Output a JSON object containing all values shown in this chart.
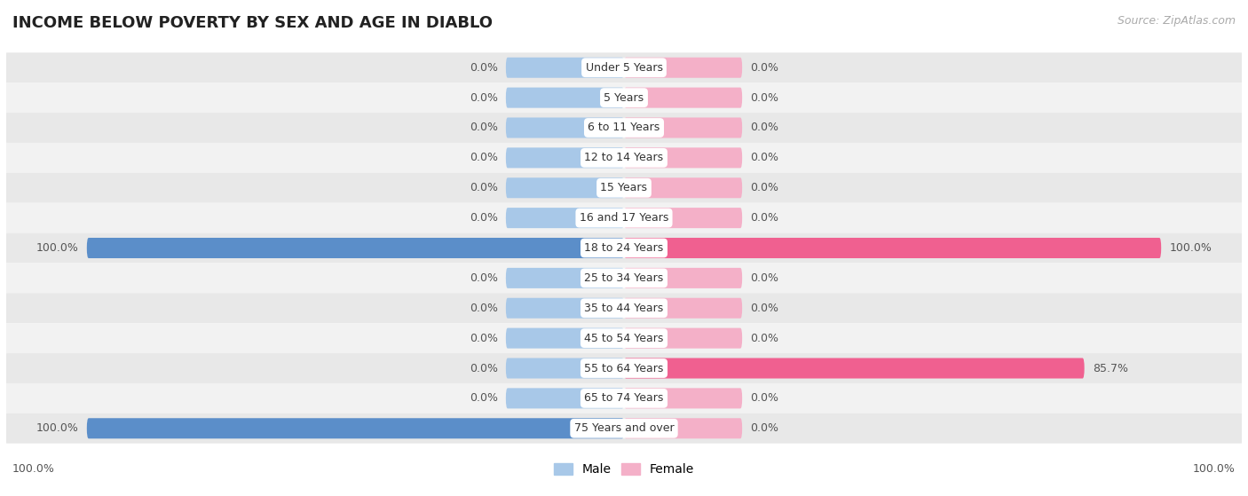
{
  "title": "INCOME BELOW POVERTY BY SEX AND AGE IN DIABLO",
  "source": "Source: ZipAtlas.com",
  "categories": [
    "Under 5 Years",
    "5 Years",
    "6 to 11 Years",
    "12 to 14 Years",
    "15 Years",
    "16 and 17 Years",
    "18 to 24 Years",
    "25 to 34 Years",
    "35 to 44 Years",
    "45 to 54 Years",
    "55 to 64 Years",
    "65 to 74 Years",
    "75 Years and over"
  ],
  "male": [
    0.0,
    0.0,
    0.0,
    0.0,
    0.0,
    0.0,
    100.0,
    0.0,
    0.0,
    0.0,
    0.0,
    0.0,
    100.0
  ],
  "female": [
    0.0,
    0.0,
    0.0,
    0.0,
    0.0,
    0.0,
    100.0,
    0.0,
    0.0,
    0.0,
    85.7,
    0.0,
    0.0
  ],
  "male_color_light": "#a8c8e8",
  "male_color_full": "#5b8ec9",
  "female_color_light": "#f4b0c8",
  "female_color_full": "#f06090",
  "background_color": "#ffffff",
  "row_bg_even": "#e8e8e8",
  "row_bg_odd": "#f2f2f2",
  "stub_pct": 22,
  "full_scale": 100,
  "title_fontsize": 13,
  "label_fontsize": 9,
  "source_fontsize": 9,
  "cat_fontsize": 9,
  "val_fontsize": 9
}
